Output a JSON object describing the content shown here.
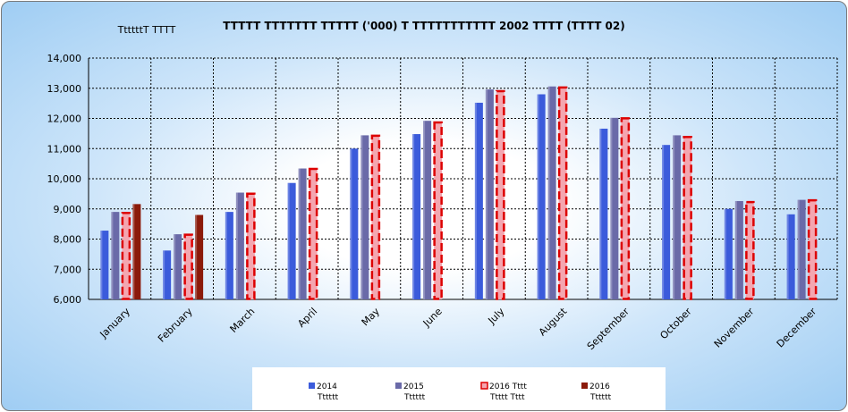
{
  "chart_data": {
    "type": "bar",
    "title": "TTTTT TTTTTTT TTTTT ('000) T TTTTTTTTTTT 2002 TTTT (TTTT 02)",
    "unit_label": "TtttttT TTTT",
    "categories": [
      "January",
      "February",
      "March",
      "April",
      "May",
      "June",
      "July",
      "August",
      "September",
      "October",
      "November",
      "December"
    ],
    "ylim": [
      6000,
      14000
    ],
    "y_ticks": [
      6000,
      7000,
      8000,
      9000,
      10000,
      11000,
      12000,
      13000,
      14000
    ],
    "y_tick_labels": [
      "6,000",
      "7,000",
      "8,000",
      "9,000",
      "10,000",
      "11,000",
      "12,000",
      "13,000",
      "14,000"
    ],
    "grid": true,
    "legend_placement": "bottom",
    "series": [
      {
        "name": "2014",
        "sub": "Tttttt",
        "color": "#3b5bdb",
        "style": "solid",
        "values": [
          8280,
          7620,
          8900,
          9860,
          11000,
          11480,
          12520,
          12800,
          11660,
          11120,
          9000,
          8820
        ]
      },
      {
        "name": "2015",
        "sub": "Tttttt",
        "color": "#6a6aa8",
        "style": "solid",
        "values": [
          8900,
          8160,
          9540,
          10340,
          11440,
          11920,
          12960,
          13060,
          12020,
          11440,
          9260,
          9300
        ]
      },
      {
        "name": "2016 Tttt",
        "sub": "Ttttt Tttt",
        "color": "#f4a6b0",
        "border": "#dd0000",
        "style": "dashed",
        "values": [
          8880,
          8160,
          9520,
          10340,
          11440,
          11880,
          12920,
          13040,
          12020,
          11400,
          9240,
          9300
        ]
      },
      {
        "name": "2016",
        "sub": "Tttttt",
        "color": "#8b1a0a",
        "style": "solid",
        "values": [
          9160,
          8800,
          null,
          null,
          null,
          null,
          null,
          null,
          null,
          null,
          null,
          null
        ]
      }
    ]
  }
}
